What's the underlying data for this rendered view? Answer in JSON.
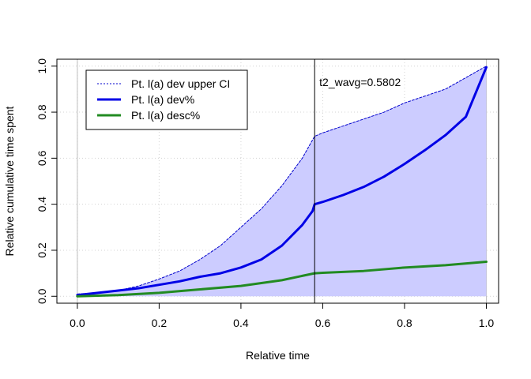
{
  "chart_data": {
    "type": "line",
    "xlabel": "Relative time",
    "ylabel": "Relative cumulative time spent",
    "xlim": [
      -0.05,
      1.03
    ],
    "ylim": [
      -0.03,
      1.03
    ],
    "x_ticks": [
      "0.0",
      "0.2",
      "0.4",
      "0.6",
      "0.8",
      "1.0"
    ],
    "y_ticks": [
      "0.0",
      "0.2",
      "0.4",
      "0.6",
      "0.8",
      "1.0"
    ],
    "grid": true,
    "legend_position": "top-left",
    "series": [
      {
        "name": "Pt. l(a) dev upper CI",
        "style": "dotted",
        "color": "#0000CC",
        "points": [
          [
            0.0,
            0.01
          ],
          [
            0.05,
            0.015
          ],
          [
            0.1,
            0.025
          ],
          [
            0.15,
            0.045
          ],
          [
            0.2,
            0.075
          ],
          [
            0.25,
            0.11
          ],
          [
            0.3,
            0.16
          ],
          [
            0.35,
            0.22
          ],
          [
            0.4,
            0.3
          ],
          [
            0.45,
            0.38
          ],
          [
            0.5,
            0.48
          ],
          [
            0.55,
            0.6
          ],
          [
            0.58,
            0.695
          ],
          [
            0.6,
            0.71
          ],
          [
            0.65,
            0.74
          ],
          [
            0.7,
            0.77
          ],
          [
            0.75,
            0.8
          ],
          [
            0.8,
            0.84
          ],
          [
            0.85,
            0.87
          ],
          [
            0.9,
            0.9
          ],
          [
            0.95,
            0.95
          ],
          [
            1.0,
            1.0
          ]
        ]
      },
      {
        "name": "Pt. l(a) dev%",
        "style": "solid-thick",
        "color": "#0000E6",
        "points": [
          [
            0.0,
            0.005
          ],
          [
            0.05,
            0.015
          ],
          [
            0.1,
            0.025
          ],
          [
            0.15,
            0.035
          ],
          [
            0.2,
            0.05
          ],
          [
            0.25,
            0.065
          ],
          [
            0.3,
            0.085
          ],
          [
            0.35,
            0.1
          ],
          [
            0.4,
            0.125
          ],
          [
            0.45,
            0.16
          ],
          [
            0.5,
            0.22
          ],
          [
            0.55,
            0.31
          ],
          [
            0.575,
            0.37
          ],
          [
            0.5802,
            0.4
          ],
          [
            0.6,
            0.41
          ],
          [
            0.65,
            0.44
          ],
          [
            0.7,
            0.475
          ],
          [
            0.75,
            0.52
          ],
          [
            0.8,
            0.575
          ],
          [
            0.85,
            0.635
          ],
          [
            0.9,
            0.7
          ],
          [
            0.95,
            0.78
          ],
          [
            1.0,
            0.995
          ]
        ]
      },
      {
        "name": "Pt. l(a) desc%",
        "style": "solid-thick",
        "color": "#228B22",
        "points": [
          [
            0.0,
            0.0
          ],
          [
            0.1,
            0.005
          ],
          [
            0.2,
            0.015
          ],
          [
            0.3,
            0.03
          ],
          [
            0.4,
            0.045
          ],
          [
            0.5,
            0.07
          ],
          [
            0.58,
            0.1
          ],
          [
            0.6,
            0.102
          ],
          [
            0.7,
            0.11
          ],
          [
            0.8,
            0.125
          ],
          [
            0.9,
            0.135
          ],
          [
            1.0,
            0.15
          ]
        ]
      }
    ],
    "shaded_area": {
      "fill": "#CCCCFF",
      "between": "upper CI and x-axis"
    },
    "vertical_line": {
      "x": 0.5802,
      "color": "#000000"
    },
    "annotation": "t2_wavg=0.5802"
  }
}
